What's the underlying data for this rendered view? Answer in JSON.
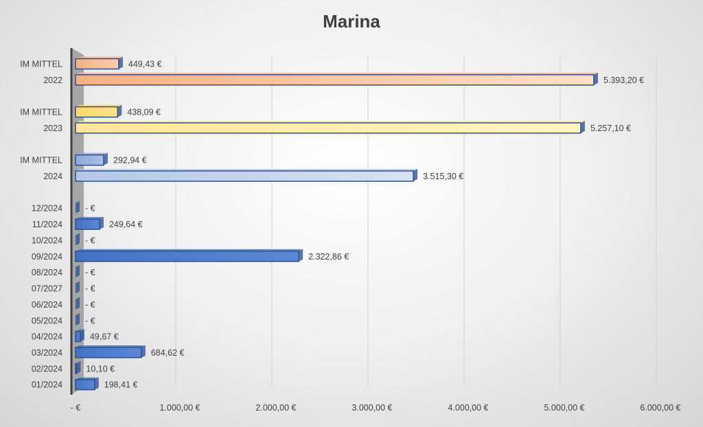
{
  "chart_data": {
    "type": "bar",
    "orientation": "horizontal",
    "title": "Marina",
    "xlim": [
      0,
      6000
    ],
    "x_ticks": [
      0,
      1000,
      2000,
      3000,
      4000,
      5000,
      6000
    ],
    "x_tick_labels": [
      "-   €",
      "1.000,00 €",
      "2.000,00 €",
      "3.000,00 €",
      "4.000,00 €",
      "5.000,00 €",
      "6.000,00 €"
    ],
    "grid": true,
    "bars": [
      {
        "category": "IM MITTEL",
        "value": 449.43,
        "label": "449,43 €",
        "color": "#f4b183",
        "color2": "#f8cbad"
      },
      {
        "category": "2022",
        "value": 5393.2,
        "label": "5.393,20 €",
        "color": "#f4b183",
        "color2": "#fbe0c8"
      },
      {
        "category": "",
        "value": null,
        "label": ""
      },
      {
        "category": "IM MITTEL",
        "value": 438.09,
        "label": "438,09 €",
        "color": "#ffd966",
        "color2": "#ffe38a"
      },
      {
        "category": "2023",
        "value": 5257.1,
        "label": "5.257,10 €",
        "color": "#ffe699",
        "color2": "#fff4c0"
      },
      {
        "category": "",
        "value": null,
        "label": ""
      },
      {
        "category": "IM MITTEL",
        "value": 292.94,
        "label": "292,94 €",
        "color": "#8eaadb",
        "color2": "#a9c0e6"
      },
      {
        "category": "2024",
        "value": 3515.3,
        "label": "3.515,30 €",
        "color": "#b4c7e7",
        "color2": "#d6e2f5"
      },
      {
        "category": "",
        "value": null,
        "label": ""
      },
      {
        "category": "12/2024",
        "value": 0,
        "label": "-   €",
        "color": "#4472c4",
        "color2": "#5b87d6"
      },
      {
        "category": "11/2024",
        "value": 249.64,
        "label": "249,64 €",
        "color": "#4472c4",
        "color2": "#5b87d6"
      },
      {
        "category": "10/2024",
        "value": 0,
        "label": "-   €",
        "color": "#4472c4",
        "color2": "#5b87d6"
      },
      {
        "category": "09/2024",
        "value": 2322.86,
        "label": "2.322,86 €",
        "color": "#4472c4",
        "color2": "#5b87d6"
      },
      {
        "category": "08/2024",
        "value": 0,
        "label": "-   €",
        "color": "#4472c4",
        "color2": "#5b87d6"
      },
      {
        "category": "07/2027",
        "value": 0,
        "label": "-   €",
        "color": "#4472c4",
        "color2": "#5b87d6"
      },
      {
        "category": "06/2024",
        "value": 0,
        "label": "-   €",
        "color": "#4472c4",
        "color2": "#5b87d6"
      },
      {
        "category": "05/2024",
        "value": 0,
        "label": "-   €",
        "color": "#4472c4",
        "color2": "#5b87d6"
      },
      {
        "category": "04/2024",
        "value": 49.67,
        "label": "49,67 €",
        "color": "#4472c4",
        "color2": "#5b87d6"
      },
      {
        "category": "03/2024",
        "value": 684.62,
        "label": "684,62 €",
        "color": "#4472c4",
        "color2": "#5b87d6"
      },
      {
        "category": "02/2024",
        "value": 10.1,
        "label": "10,10 €",
        "color": "#4472c4",
        "color2": "#5b87d6"
      },
      {
        "category": "01/2024",
        "value": 198.41,
        "label": "198,41 €",
        "color": "#4472c4",
        "color2": "#5b87d6"
      }
    ]
  }
}
